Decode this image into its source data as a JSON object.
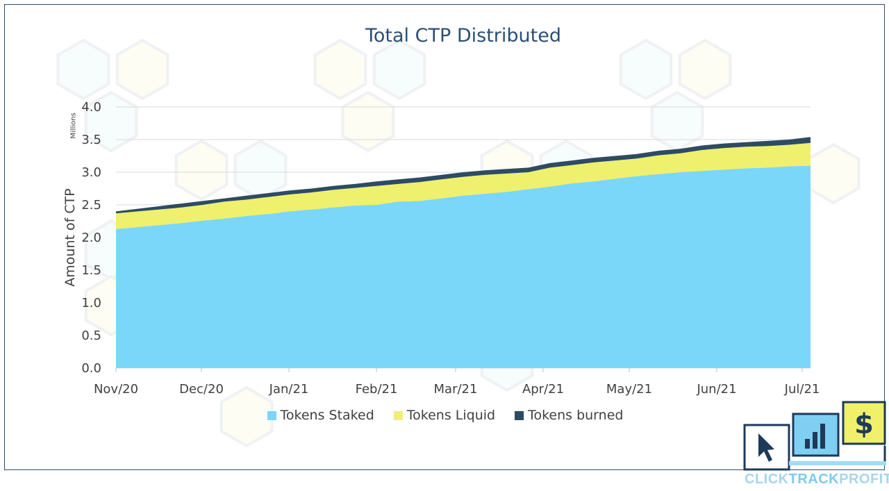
{
  "chart_data": {
    "type": "area",
    "stacked": true,
    "title": "Total CTP Distributed",
    "ylabel": "Amount of CTP",
    "y_unit": "Millions",
    "xlabel": "",
    "ylim": [
      0,
      4.0
    ],
    "y_ticks": [
      "0.0",
      "0.5",
      "1.0",
      "1.5",
      "2.0",
      "2.5",
      "3.0",
      "3.5",
      "4.0"
    ],
    "x_ticks": [
      "Nov/20",
      "Dec/20",
      "Jan/21",
      "Feb/21",
      "Mar/21",
      "Apr/21",
      "May/21",
      "Jun/21",
      "Jul/21"
    ],
    "grid": true,
    "legend_position": "bottom",
    "x": [
      0,
      0.25,
      0.5,
      0.75,
      1.0,
      1.25,
      1.5,
      1.75,
      2.0,
      2.25,
      2.5,
      2.75,
      3.0,
      3.25,
      3.5,
      3.75,
      4.0,
      4.25,
      4.5,
      4.75,
      5.0,
      5.25,
      5.5,
      5.75,
      6.0,
      6.25,
      6.5,
      6.75,
      7.0,
      7.25,
      7.5,
      7.75,
      8.0
    ],
    "series": [
      {
        "name": "Tokens Staked",
        "color": "#7ad7fa",
        "values": [
          2.13,
          2.16,
          2.19,
          2.22,
          2.26,
          2.29,
          2.33,
          2.36,
          2.4,
          2.43,
          2.46,
          2.49,
          2.5,
          2.55,
          2.56,
          2.6,
          2.64,
          2.67,
          2.7,
          2.74,
          2.78,
          2.83,
          2.86,
          2.9,
          2.94,
          2.97,
          3.0,
          3.02,
          3.04,
          3.06,
          3.07,
          3.09,
          3.1
        ]
      },
      {
        "name": "Tokens Liquid",
        "color": "#eef06e",
        "values": [
          0.24,
          0.24,
          0.24,
          0.24,
          0.24,
          0.26,
          0.25,
          0.26,
          0.26,
          0.26,
          0.27,
          0.27,
          0.29,
          0.27,
          0.29,
          0.29,
          0.29,
          0.29,
          0.28,
          0.26,
          0.29,
          0.28,
          0.29,
          0.28,
          0.27,
          0.29,
          0.29,
          0.32,
          0.33,
          0.33,
          0.33,
          0.33,
          0.35
        ]
      },
      {
        "name": "Tokens burned",
        "color": "#2e4b63",
        "values": [
          0.03,
          0.04,
          0.05,
          0.06,
          0.06,
          0.05,
          0.06,
          0.06,
          0.06,
          0.06,
          0.06,
          0.06,
          0.07,
          0.07,
          0.07,
          0.07,
          0.07,
          0.07,
          0.07,
          0.07,
          0.07,
          0.07,
          0.07,
          0.07,
          0.07,
          0.07,
          0.07,
          0.07,
          0.07,
          0.07,
          0.08,
          0.08,
          0.09
        ]
      }
    ]
  },
  "logo": {
    "brand_parts": [
      "CLICK",
      "TRACK",
      "PROFIT"
    ],
    "icons": [
      "cursor-icon",
      "bar-chart-icon",
      "dollar-icon"
    ],
    "colors": {
      "navy": "#1d3a5a",
      "cyan": "#39b3e8",
      "yellow": "#f0f06a"
    }
  }
}
